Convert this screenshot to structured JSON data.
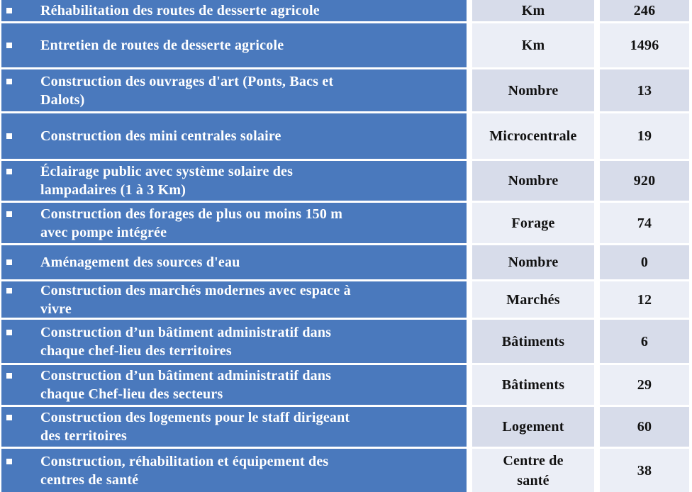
{
  "colors": {
    "row_blue": "#4a79bd",
    "band_dark": "#d7dcea",
    "band_light": "#ebeef6",
    "grid_white": "#ffffff",
    "text_on_blue": "#ffffff",
    "text_dark": "#121212"
  },
  "icons": {
    "bullet": "white-square-bullet"
  },
  "table": {
    "columns": [
      "description",
      "unit",
      "value"
    ],
    "rows": [
      {
        "desc_lines": [
          "Réhabilitation des routes de desserte agricole"
        ],
        "unit_lines": [
          "Km"
        ],
        "value": "246"
      },
      {
        "desc_lines": [
          "Entretien de routes de desserte agricole"
        ],
        "unit_lines": [
          "Km"
        ],
        "value": "1496"
      },
      {
        "desc_lines": [
          "Construction des ouvrages d'art (Ponts, Bacs et",
          "Dalots)"
        ],
        "unit_lines": [
          "Nombre"
        ],
        "value": "13"
      },
      {
        "desc_lines": [
          "Construction des mini centrales solaire"
        ],
        "unit_lines": [
          "Microcentrale"
        ],
        "value": "19"
      },
      {
        "desc_lines": [
          "Éclairage public avec système solaire des",
          "lampadaires (1 à 3 Km)"
        ],
        "unit_lines": [
          "Nombre"
        ],
        "value": "920"
      },
      {
        "desc_lines": [
          "Construction des forages de plus ou moins 150 m",
          "avec pompe intégrée"
        ],
        "unit_lines": [
          "Forage"
        ],
        "value": "74"
      },
      {
        "desc_lines": [
          "Aménagement des sources d'eau"
        ],
        "unit_lines": [
          "Nombre"
        ],
        "value": "0"
      },
      {
        "desc_lines": [
          "Construction des marchés modernes avec espace à",
          "vivre"
        ],
        "unit_lines": [
          "Marchés"
        ],
        "value": "12"
      },
      {
        "desc_lines": [
          "Construction d’un bâtiment administratif dans",
          "chaque chef-lieu des territoires"
        ],
        "unit_lines": [
          "Bâtiments"
        ],
        "value": "6"
      },
      {
        "desc_lines": [
          "Construction d’un bâtiment administratif dans",
          "chaque Chef-lieu des secteurs"
        ],
        "unit_lines": [
          "Bâtiments"
        ],
        "value": "29"
      },
      {
        "desc_lines": [
          "Construction des logements pour le staff dirigeant",
          "des territoires"
        ],
        "unit_lines": [
          "Logement"
        ],
        "value": "60"
      },
      {
        "desc_lines": [
          "Construction, réhabilitation et équipement des",
          "centres de santé"
        ],
        "unit_lines": [
          "Centre de",
          "santé"
        ],
        "value": "38"
      }
    ]
  }
}
